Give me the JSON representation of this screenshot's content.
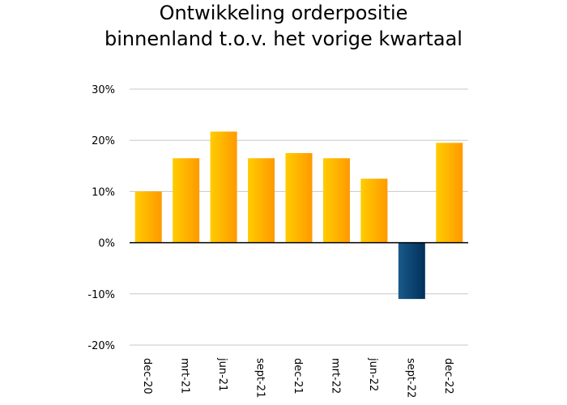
{
  "chart_data": {
    "type": "bar",
    "title_lines": [
      "Ontwikkeling orderpositie",
      "binnenland t.o.v. het vorige kwartaal"
    ],
    "xlabel": "",
    "ylabel": "",
    "categories": [
      "dec-20",
      "mrt-21",
      "jun-21",
      "sept-21",
      "dec-21",
      "mrt-22",
      "jun-22",
      "sept-22",
      "dec-22"
    ],
    "values": [
      10,
      16.5,
      21.7,
      16.5,
      17.5,
      16.5,
      12.5,
      -11,
      19.5
    ],
    "ylim": [
      -20,
      30
    ],
    "yticks": [
      -20,
      -10,
      0,
      10,
      20,
      30
    ],
    "ytick_labels": [
      "-20%",
      "-10%",
      "0%",
      "10%",
      "20%",
      "30%"
    ],
    "grid": true,
    "legend": "none",
    "colors": {
      "positive_light": "#ffcc00",
      "positive_dark": "#ff9900",
      "negative_light": "#1a5a8a",
      "negative_dark": "#00305a",
      "grid": "#c8c8c8",
      "zero_line": "#000000"
    }
  }
}
